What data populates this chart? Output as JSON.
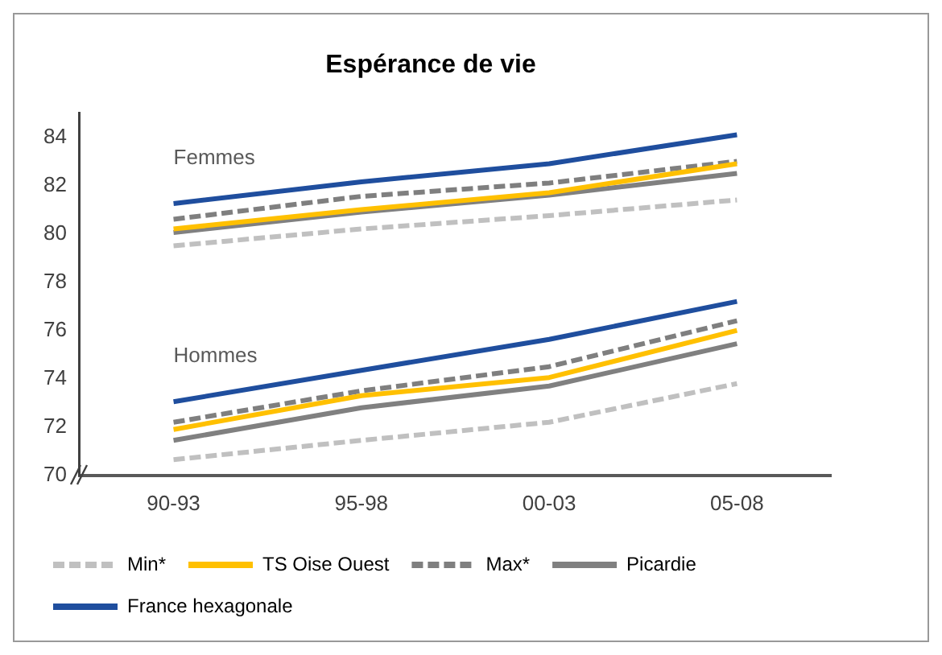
{
  "chart_data": {
    "type": "line",
    "title": "Espérance de vie",
    "categories": [
      "90-93",
      "95-98",
      "00-03",
      "05-08"
    ],
    "ylim": [
      70,
      85
    ],
    "yticks": [
      70,
      72,
      74,
      76,
      78,
      80,
      82,
      84
    ],
    "grid": false,
    "legend": "bottom",
    "marker": "none",
    "annotations": [
      "Femmes",
      "Hommes"
    ],
    "series": [
      {
        "name": "Min*",
        "color": "#c0c0c0",
        "line_style": "dashed",
        "values": [
          79.5,
          80.2,
          80.75,
          81.4
        ]
      },
      {
        "name": "TS Oise Ouest",
        "color": "#ffc000",
        "line_style": "solid",
        "values": [
          80.2,
          81.0,
          81.7,
          82.9
        ]
      },
      {
        "name": "Max*",
        "color": "#7f7f7f",
        "line_style": "dashed",
        "values": [
          80.6,
          81.55,
          82.1,
          83.0
        ]
      },
      {
        "name": "Picardie",
        "color": "#808080",
        "line_style": "solid",
        "values": [
          80.05,
          80.9,
          81.6,
          82.5
        ]
      },
      {
        "name": "France hexagonale",
        "color": "#1f4e9e",
        "line_style": "solid",
        "values": [
          81.25,
          82.15,
          82.9,
          84.1
        ]
      },
      {
        "color": "#c0c0c0",
        "line_style": "dashed",
        "values": [
          70.65,
          71.45,
          72.2,
          73.8
        ]
      },
      {
        "color": "#ffc000",
        "line_style": "solid",
        "values": [
          71.9,
          73.3,
          74.05,
          76.0
        ]
      },
      {
        "color": "#7f7f7f",
        "line_style": "dashed",
        "values": [
          72.2,
          73.5,
          74.5,
          76.4
        ]
      },
      {
        "color": "#808080",
        "line_style": "solid",
        "values": [
          71.45,
          72.8,
          73.7,
          75.45
        ]
      },
      {
        "color": "#1f4e9e",
        "line_style": "solid",
        "values": [
          73.05,
          74.35,
          75.63,
          77.2
        ]
      }
    ]
  }
}
